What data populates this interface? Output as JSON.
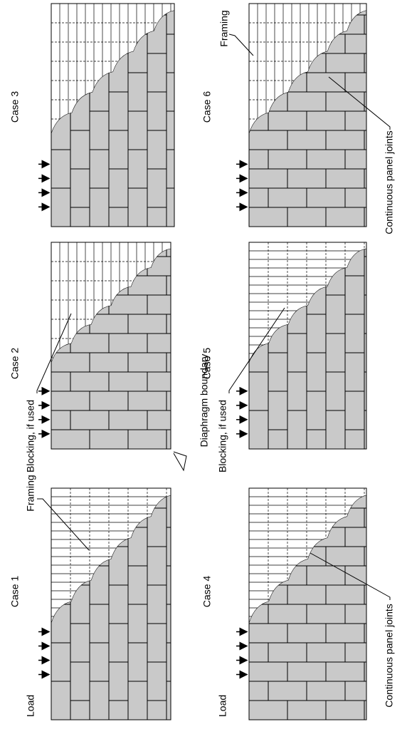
{
  "cases": [
    "Case 1",
    "Case 2",
    "Case 3",
    "Case 4",
    "Case 5",
    "Case 6"
  ],
  "annotations": {
    "load": [
      "Load",
      "Load"
    ],
    "framing": [
      "Framing",
      "Framing"
    ],
    "blocking": [
      "Blocking, if used",
      "Blocking, if used"
    ],
    "diaphragm_boundary": "Diaphragm boundary",
    "continuous_panel_joints": [
      "Continuous panel joints",
      "Continuous panel joints"
    ]
  }
}
